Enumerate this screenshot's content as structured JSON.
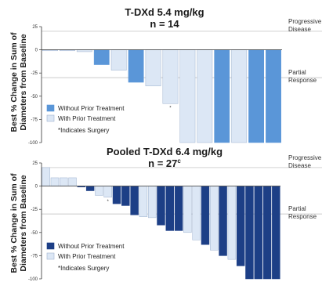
{
  "ylabel_line1": "Best % Change in Sum of",
  "ylabel_line2": "Diameters from Baseline",
  "chart_data": [
    {
      "type": "bar",
      "title_line1": "T-DXd 5.4 mg/kg",
      "title_line2": "n = 14",
      "ylim": [
        -100,
        25
      ],
      "yticks": [
        25,
        0,
        -25,
        -50,
        -75,
        -100
      ],
      "reference_lines": [
        {
          "value": 20,
          "label": "Progressive Disease"
        },
        {
          "value": -30,
          "label": "Partial Response"
        }
      ],
      "values": [
        -1,
        -1,
        -2,
        -16,
        -22,
        -35,
        -39,
        -58,
        -100,
        -100,
        -100,
        -100,
        -100,
        -100
      ],
      "series_index": [
        1,
        1,
        1,
        0,
        1,
        0,
        1,
        1,
        1,
        1,
        0,
        1,
        0,
        0
      ],
      "surgery": [
        false,
        false,
        false,
        false,
        false,
        false,
        false,
        true,
        false,
        false,
        false,
        false,
        false,
        false
      ],
      "series": [
        {
          "name": "Without Prior Treatment",
          "color": "#5a96d8"
        },
        {
          "name": "With Prior Treatment",
          "color": "#dce7f5"
        }
      ],
      "note": "*Indicates Surgery"
    },
    {
      "type": "bar",
      "title_line1": "Pooled T-DXd 6.4 mg/kg",
      "title_line2": "n = 27",
      "title_superscript": "c",
      "ylim": [
        -100,
        25
      ],
      "yticks": [
        25,
        0,
        -25,
        -50,
        -75,
        -100
      ],
      "reference_lines": [
        {
          "value": 20,
          "label": "Progressive Disease"
        },
        {
          "value": -30,
          "label": "Partial Response"
        }
      ],
      "values": [
        20,
        9,
        9,
        9,
        -1,
        -5,
        -10,
        -12,
        -19,
        -21,
        -31,
        -33,
        -34,
        -42,
        -48,
        -48,
        -50,
        -58,
        -63,
        -69,
        -75,
        -79,
        -86,
        -100,
        -100,
        -100,
        -100
      ],
      "series_index": [
        1,
        1,
        1,
        1,
        0,
        0,
        1,
        1,
        0,
        0,
        0,
        1,
        1,
        0,
        0,
        0,
        1,
        1,
        0,
        1,
        0,
        1,
        0,
        0,
        0,
        0,
        0
      ],
      "surgery": [
        false,
        false,
        false,
        false,
        false,
        false,
        false,
        true,
        false,
        false,
        false,
        false,
        false,
        false,
        false,
        false,
        false,
        false,
        false,
        false,
        false,
        false,
        false,
        false,
        false,
        false,
        false
      ],
      "series": [
        {
          "name": "Without Prior Treatment",
          "color": "#1d3f86"
        },
        {
          "name": "With Prior Treatment",
          "color": "#dce7f5"
        }
      ],
      "note": "*Indicates Surgery"
    }
  ]
}
